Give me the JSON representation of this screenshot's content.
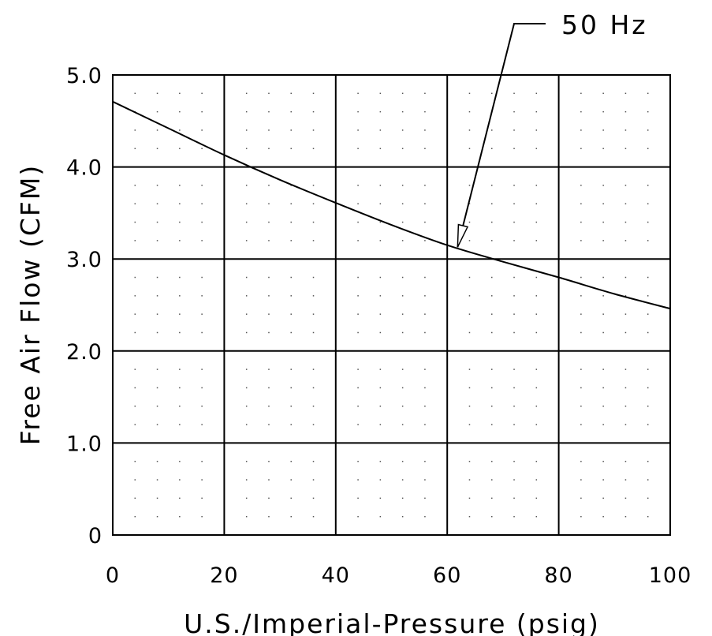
{
  "chart_data": {
    "type": "line",
    "title": "",
    "xlabel": "U.S./Imperial-Pressure (psig)",
    "ylabel": "Free Air Flow (CFM)",
    "xlim": [
      0,
      100
    ],
    "ylim": [
      0,
      5.0
    ],
    "x_ticks": [
      "0",
      "20",
      "40",
      "60",
      "80",
      "100"
    ],
    "y_ticks": [
      "0",
      "1.0",
      "2.0",
      "3.0",
      "4.0",
      "5.0"
    ],
    "grid": true,
    "grid_minor": "dotted",
    "series": [
      {
        "name": "50 Hz",
        "x": [
          0,
          10,
          20,
          30,
          40,
          50,
          60,
          70,
          80,
          90,
          100
        ],
        "y": [
          4.71,
          4.42,
          4.13,
          3.86,
          3.61,
          3.37,
          3.15,
          2.97,
          2.8,
          2.62,
          2.46
        ]
      }
    ],
    "annotations": [
      {
        "text": "50 Hz",
        "points_to": {
          "x": 62,
          "y": 3.12
        }
      }
    ]
  }
}
